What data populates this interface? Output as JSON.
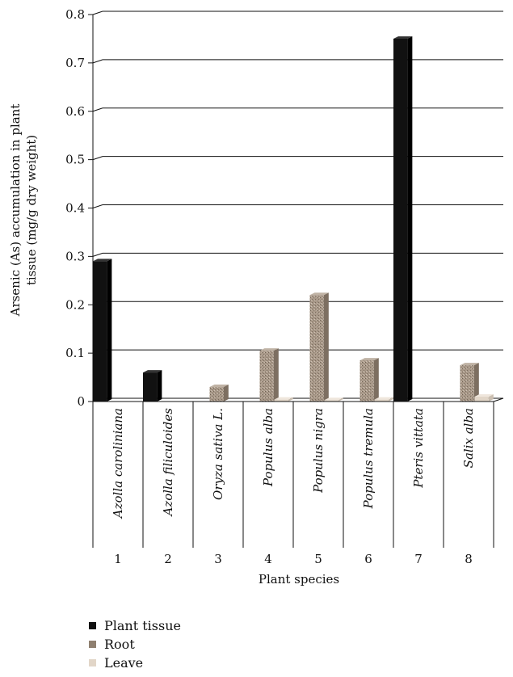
{
  "chart_data": {
    "type": "bar",
    "title": "",
    "xlabel": "Plant species",
    "ylabel_line1": "Arsenic (As) accumulation in plant",
    "ylabel_line2": "tissue (mg/g dry weight)",
    "ylim": [
      0,
      0.8
    ],
    "yticks": [
      "0",
      "0.1",
      "0.2",
      "0.3",
      "0.4",
      "0.5",
      "0.6",
      "0.7",
      "0.8"
    ],
    "grid": true,
    "legend_position": "bottom-left",
    "categories": [
      "1",
      "2",
      "3",
      "4",
      "5",
      "6",
      "7",
      "8"
    ],
    "category_names": [
      "Azolla caroliniana",
      "Azolla filiculoides",
      "Oryza sativa L.",
      "Populus alba",
      "Populus nigra",
      "Populus tremula",
      "Pteris vittata",
      "Salix alba"
    ],
    "series": [
      {
        "name": "Plant tissue",
        "color": "#111111",
        "values": [
          0.29,
          0.06,
          0,
          0,
          0,
          0,
          0.75,
          0
        ]
      },
      {
        "name": "Root",
        "color": "#a09080",
        "values": [
          0,
          0,
          0.03,
          0.105,
          0.22,
          0.085,
          0,
          0.075
        ]
      },
      {
        "name": "Leave",
        "color": "#e2d6c8",
        "values": [
          0,
          0,
          0,
          0.004,
          0.003,
          0.004,
          0,
          0.01
        ]
      }
    ]
  }
}
